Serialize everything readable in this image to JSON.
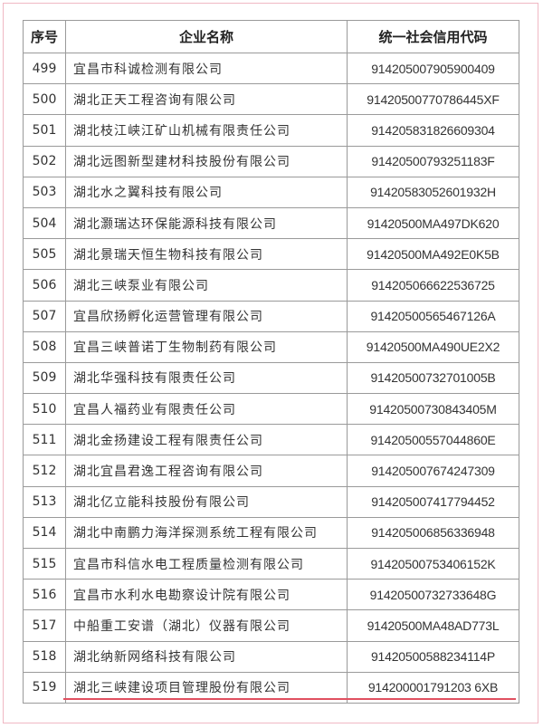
{
  "headers": [
    "序号",
    "企业名称",
    "统一社会信用代码"
  ],
  "rows": [
    {
      "no": "499",
      "name": "宜昌市科诚检测有限公司",
      "code": "914205007905900409"
    },
    {
      "no": "500",
      "name": "湖北正天工程咨询有限公司",
      "code": "91420500770786445XF"
    },
    {
      "no": "501",
      "name": "湖北枝江峡江矿山机械有限责任公司",
      "code": "914205831826609304"
    },
    {
      "no": "502",
      "name": "湖北远图新型建材科技股份有限公司",
      "code": "91420500793251183F"
    },
    {
      "no": "503",
      "name": "湖北水之翼科技有限公司",
      "code": "91420583052601932H"
    },
    {
      "no": "504",
      "name": "湖北灏瑞达环保能源科技有限公司",
      "code": "91420500MA497DK620"
    },
    {
      "no": "505",
      "name": "湖北景瑞天恒生物科技有限公司",
      "code": "91420500MA492E0K5B"
    },
    {
      "no": "506",
      "name": "湖北三峡泵业有限公司",
      "code": "914205066622536725"
    },
    {
      "no": "507",
      "name": "宜昌欣扬孵化运营管理有限公司",
      "code": "91420500565467126A"
    },
    {
      "no": "508",
      "name": "宜昌三峡普诺丁生物制药有限公司",
      "code": "91420500MA490UE2X2"
    },
    {
      "no": "509",
      "name": "湖北华强科技有限责任公司",
      "code": "91420500732701005B"
    },
    {
      "no": "510",
      "name": "宜昌人福药业有限责任公司",
      "code": "91420500730843405M"
    },
    {
      "no": "511",
      "name": "湖北金扬建设工程有限责任公司",
      "code": "91420500557044860E"
    },
    {
      "no": "512",
      "name": "湖北宜昌君逸工程咨询有限公司",
      "code": "914205007674247309"
    },
    {
      "no": "513",
      "name": "湖北亿立能科技股份有限公司",
      "code": "914205007417794452"
    },
    {
      "no": "514",
      "name": "湖北中南鹏力海洋探测系统工程有限公司",
      "code": "914205006856336948"
    },
    {
      "no": "515",
      "name": "宜昌市科信水电工程质量检测有限公司",
      "code": "91420500753406152K"
    },
    {
      "no": "516",
      "name": "宜昌市水利水电勘察设计院有限公司",
      "code": "91420500732733648G"
    },
    {
      "no": "517",
      "name": "中船重工安谱（湖北）仪器有限公司",
      "code": "91420500MA48AD773L"
    },
    {
      "no": "518",
      "name": "湖北纳新网络科技有限公司",
      "code": "91420500588234114P"
    },
    {
      "no": "519",
      "name": "湖北三峡建设项目管理股份有限公司",
      "code": "914200001791203 6XB"
    }
  ],
  "colors": {
    "underline": "#e05060",
    "border": "#f0b8c4"
  }
}
